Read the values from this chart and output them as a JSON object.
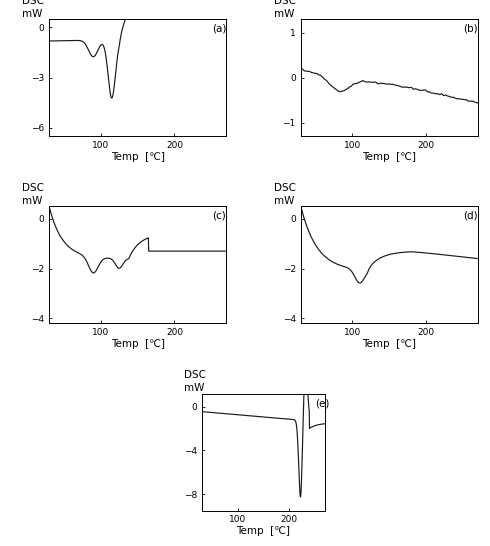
{
  "xlabel": "Temp  [℃]",
  "line_color": "#1a1a1a",
  "label_fontsize": 7.5,
  "tick_fontsize": 6.5,
  "panels": [
    {
      "label": "(a)",
      "ylim": [
        -6.5,
        0.5
      ],
      "yticks": [
        0,
        -3,
        -6
      ],
      "xlim": [
        30,
        270
      ],
      "xticks": [
        100,
        200
      ]
    },
    {
      "label": "(b)",
      "ylim": [
        -1.3,
        1.3
      ],
      "yticks": [
        1,
        0,
        -1
      ],
      "xlim": [
        30,
        270
      ],
      "xticks": [
        100,
        200
      ]
    },
    {
      "label": "(c)",
      "ylim": [
        -4.2,
        0.5
      ],
      "yticks": [
        0,
        -2,
        -4
      ],
      "xlim": [
        30,
        270
      ],
      "xticks": [
        100,
        200
      ]
    },
    {
      "label": "(d)",
      "ylim": [
        -4.2,
        0.5
      ],
      "yticks": [
        0,
        -2,
        -4
      ],
      "xlim": [
        30,
        270
      ],
      "xticks": [
        100,
        200
      ]
    },
    {
      "label": "(e)",
      "ylim": [
        -9.5,
        1.2
      ],
      "yticks": [
        0,
        -4,
        -8
      ],
      "xlim": [
        30,
        270
      ],
      "xticks": [
        100,
        200
      ]
    }
  ]
}
